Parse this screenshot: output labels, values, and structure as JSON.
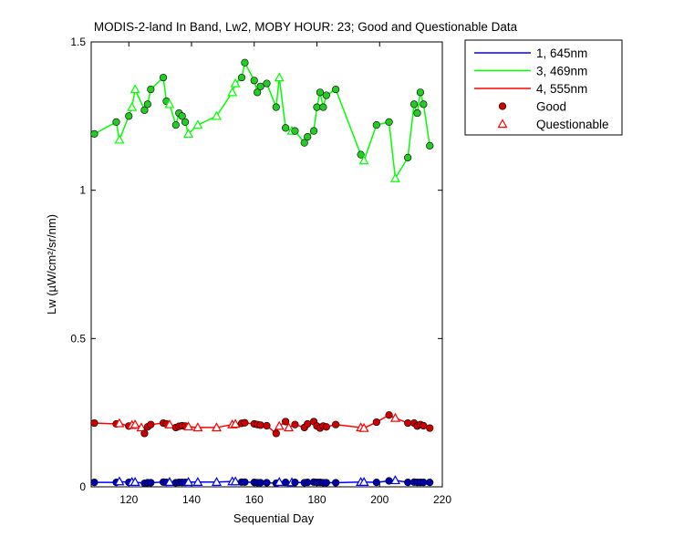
{
  "chart_data": {
    "type": "line",
    "title": "MODIS-2-land In Band,  Lw2, MOBY HOUR: 23;  Good and Questionable Data",
    "xlabel": "Sequential Day",
    "ylabel": "Lw (µW/cm²/sr/nm)",
    "xlim": [
      108,
      220
    ],
    "ylim": [
      0,
      1.5
    ],
    "xticks": [
      120,
      140,
      160,
      180,
      200,
      220
    ],
    "xtick_labels": [
      "120",
      "140",
      "160",
      "180",
      "200",
      "220"
    ],
    "yticks": [
      0,
      0.5,
      1,
      1.5
    ],
    "ytick_labels": [
      "0",
      "0.5",
      "1",
      "1.5"
    ],
    "grid": false,
    "legend_position": "outside-top-right",
    "legend": [
      {
        "label": "1, 645nm",
        "kind": "line",
        "color": "#0000ff"
      },
      {
        "label": "3, 469nm",
        "kind": "line",
        "color": "#00ff00"
      },
      {
        "label": "4, 555nm",
        "kind": "line",
        "color": "#ff0000"
      },
      {
        "label": "Good",
        "kind": "marker-circle",
        "color": "#cc0000"
      },
      {
        "label": "Questionable",
        "kind": "marker-triangle",
        "color": "#ff0000"
      }
    ],
    "series": [
      {
        "name": "3, 469nm",
        "color": "#00ff00",
        "good_color": "#22cc22",
        "points": [
          [
            109,
            1.19,
            "g"
          ],
          [
            116,
            1.23,
            "g"
          ],
          [
            117,
            1.17,
            "q"
          ],
          [
            120,
            1.25,
            "g"
          ],
          [
            121,
            1.28,
            "q"
          ],
          [
            122,
            1.34,
            "q"
          ],
          [
            125,
            1.27,
            "g"
          ],
          [
            126,
            1.29,
            "g"
          ],
          [
            127,
            1.34,
            "g"
          ],
          [
            131,
            1.38,
            "g"
          ],
          [
            132,
            1.3,
            "g"
          ],
          [
            133,
            1.29,
            "q"
          ],
          [
            135,
            1.22,
            "g"
          ],
          [
            136,
            1.26,
            "g"
          ],
          [
            137,
            1.25,
            "g"
          ],
          [
            138,
            1.23,
            "g"
          ],
          [
            139,
            1.19,
            "q"
          ],
          [
            142,
            1.22,
            "q"
          ],
          [
            148,
            1.25,
            "q"
          ],
          [
            153,
            1.33,
            "q"
          ],
          [
            154,
            1.36,
            "q"
          ],
          [
            156,
            1.38,
            "g"
          ],
          [
            157,
            1.43,
            "g"
          ],
          [
            160,
            1.37,
            "g"
          ],
          [
            161,
            1.33,
            "g"
          ],
          [
            162,
            1.35,
            "g"
          ],
          [
            164,
            1.36,
            "g"
          ],
          [
            167,
            1.28,
            "g"
          ],
          [
            168,
            1.38,
            "q"
          ],
          [
            170,
            1.21,
            "g"
          ],
          [
            172,
            1.2,
            "q"
          ],
          [
            173,
            1.2,
            "g"
          ],
          [
            176,
            1.16,
            "g"
          ],
          [
            177,
            1.18,
            "g"
          ],
          [
            179,
            1.2,
            "g"
          ],
          [
            180,
            1.28,
            "g"
          ],
          [
            181,
            1.33,
            "g"
          ],
          [
            182,
            1.28,
            "g"
          ],
          [
            183,
            1.32,
            "g"
          ],
          [
            186,
            1.34,
            "g"
          ],
          [
            194,
            1.12,
            "g"
          ],
          [
            195,
            1.1,
            "q"
          ],
          [
            199,
            1.22,
            "g"
          ],
          [
            203,
            1.23,
            "g"
          ],
          [
            205,
            1.04,
            "q"
          ],
          [
            209,
            1.11,
            "g"
          ],
          [
            211,
            1.29,
            "g"
          ],
          [
            212,
            1.26,
            "g"
          ],
          [
            213,
            1.33,
            "g"
          ],
          [
            214,
            1.29,
            "g"
          ],
          [
            216,
            1.15,
            "g"
          ]
        ]
      },
      {
        "name": "4, 555nm",
        "color": "#ff0000",
        "good_color": "#cc0000",
        "points": [
          [
            109,
            0.215,
            "g"
          ],
          [
            116,
            0.212,
            "g"
          ],
          [
            117,
            0.214,
            "q"
          ],
          [
            120,
            0.205,
            "g"
          ],
          [
            121,
            0.208,
            "q"
          ],
          [
            122,
            0.21,
            "q"
          ],
          [
            124,
            0.2,
            "q"
          ],
          [
            125,
            0.18,
            "g"
          ],
          [
            126,
            0.202,
            "g"
          ],
          [
            127,
            0.21,
            "g"
          ],
          [
            131,
            0.215,
            "g"
          ],
          [
            132,
            0.212,
            "g"
          ],
          [
            133,
            0.21,
            "q"
          ],
          [
            135,
            0.2,
            "g"
          ],
          [
            136,
            0.204,
            "g"
          ],
          [
            137,
            0.206,
            "g"
          ],
          [
            138,
            0.205,
            "g"
          ],
          [
            139,
            0.203,
            "q"
          ],
          [
            142,
            0.2,
            "q"
          ],
          [
            148,
            0.2,
            "q"
          ],
          [
            153,
            0.21,
            "q"
          ],
          [
            154,
            0.212,
            "q"
          ],
          [
            156,
            0.214,
            "g"
          ],
          [
            157,
            0.216,
            "g"
          ],
          [
            160,
            0.212,
            "g"
          ],
          [
            161,
            0.21,
            "g"
          ],
          [
            162,
            0.208,
            "g"
          ],
          [
            164,
            0.206,
            "g"
          ],
          [
            167,
            0.18,
            "g"
          ],
          [
            168,
            0.205,
            "q"
          ],
          [
            170,
            0.22,
            "g"
          ],
          [
            171,
            0.2,
            "q"
          ],
          [
            173,
            0.21,
            "g"
          ],
          [
            176,
            0.2,
            "g"
          ],
          [
            177,
            0.212,
            "g"
          ],
          [
            179,
            0.22,
            "g"
          ],
          [
            180,
            0.205,
            "g"
          ],
          [
            181,
            0.198,
            "g"
          ],
          [
            182,
            0.205,
            "g"
          ],
          [
            183,
            0.202,
            "g"
          ],
          [
            186,
            0.21,
            "g"
          ],
          [
            194,
            0.2,
            "q"
          ],
          [
            195,
            0.198,
            "q"
          ],
          [
            199,
            0.218,
            "g"
          ],
          [
            203,
            0.242,
            "g"
          ],
          [
            205,
            0.232,
            "q"
          ],
          [
            209,
            0.215,
            "g"
          ],
          [
            211,
            0.215,
            "g"
          ],
          [
            212,
            0.205,
            "g"
          ],
          [
            213,
            0.21,
            "g"
          ],
          [
            214,
            0.206,
            "g"
          ],
          [
            216,
            0.198,
            "g"
          ]
        ]
      },
      {
        "name": "1, 645nm",
        "color": "#0000ff",
        "good_color": "#0000aa",
        "points": [
          [
            109,
            0.015,
            "g"
          ],
          [
            116,
            0.015,
            "g"
          ],
          [
            117,
            0.018,
            "q"
          ],
          [
            120,
            0.015,
            "g"
          ],
          [
            121,
            0.016,
            "q"
          ],
          [
            122,
            0.016,
            "q"
          ],
          [
            125,
            0.012,
            "g"
          ],
          [
            126,
            0.014,
            "g"
          ],
          [
            127,
            0.014,
            "g"
          ],
          [
            131,
            0.016,
            "g"
          ],
          [
            132,
            0.015,
            "g"
          ],
          [
            133,
            0.016,
            "q"
          ],
          [
            135,
            0.014,
            "g"
          ],
          [
            136,
            0.015,
            "g"
          ],
          [
            137,
            0.015,
            "g"
          ],
          [
            138,
            0.015,
            "g"
          ],
          [
            139,
            0.016,
            "q"
          ],
          [
            142,
            0.016,
            "q"
          ],
          [
            148,
            0.016,
            "q"
          ],
          [
            153,
            0.018,
            "q"
          ],
          [
            154,
            0.018,
            "q"
          ],
          [
            156,
            0.016,
            "g"
          ],
          [
            157,
            0.016,
            "g"
          ],
          [
            160,
            0.015,
            "g"
          ],
          [
            161,
            0.014,
            "g"
          ],
          [
            162,
            0.014,
            "g"
          ],
          [
            164,
            0.014,
            "g"
          ],
          [
            167,
            0.012,
            "g"
          ],
          [
            168,
            0.016,
            "q"
          ],
          [
            170,
            0.015,
            "g"
          ],
          [
            172,
            0.015,
            "q"
          ],
          [
            173,
            0.015,
            "g"
          ],
          [
            176,
            0.014,
            "g"
          ],
          [
            177,
            0.015,
            "g"
          ],
          [
            179,
            0.016,
            "g"
          ],
          [
            180,
            0.015,
            "g"
          ],
          [
            181,
            0.015,
            "g"
          ],
          [
            182,
            0.014,
            "g"
          ],
          [
            183,
            0.014,
            "g"
          ],
          [
            186,
            0.014,
            "g"
          ],
          [
            194,
            0.016,
            "q"
          ],
          [
            195,
            0.016,
            "q"
          ],
          [
            199,
            0.015,
            "g"
          ],
          [
            203,
            0.02,
            "g"
          ],
          [
            205,
            0.022,
            "q"
          ],
          [
            209,
            0.015,
            "g"
          ],
          [
            211,
            0.016,
            "g"
          ],
          [
            212,
            0.015,
            "g"
          ],
          [
            213,
            0.015,
            "g"
          ],
          [
            214,
            0.015,
            "g"
          ],
          [
            216,
            0.015,
            "g"
          ]
        ]
      }
    ]
  }
}
